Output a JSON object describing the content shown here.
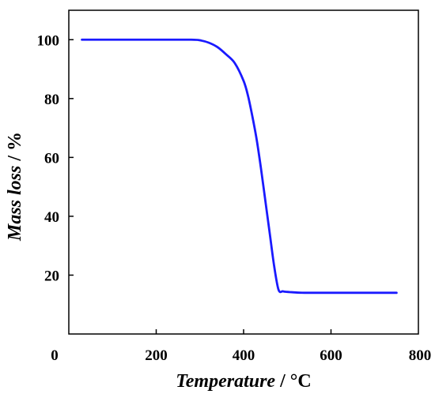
{
  "chart_data": {
    "type": "line",
    "xlabel_italic": "Temperature",
    "xlabel_rest": " / °C",
    "ylabel_italic": "Mass loss",
    "ylabel_rest": " / %",
    "xlim": [
      0,
      800
    ],
    "ylim": [
      0,
      110
    ],
    "xticks": [
      0,
      200,
      400,
      600,
      800
    ],
    "yticks": [
      20,
      40,
      60,
      80,
      100
    ],
    "grid": false,
    "series": [
      {
        "color": "#1a1aff",
        "x": [
          30,
          100,
          200,
          280,
          300,
          320,
          340,
          360,
          380,
          400,
          410,
          420,
          430,
          440,
          450,
          460,
          470,
          480,
          490,
          500,
          510,
          520,
          540,
          600,
          700,
          750
        ],
        "y": [
          100,
          100,
          100,
          100,
          99.8,
          99,
          97.5,
          95,
          92,
          86,
          81,
          74,
          66,
          56,
          45,
          34,
          23,
          15,
          14.5,
          14.3,
          14.2,
          14.1,
          14,
          14,
          14,
          14
        ]
      }
    ]
  }
}
